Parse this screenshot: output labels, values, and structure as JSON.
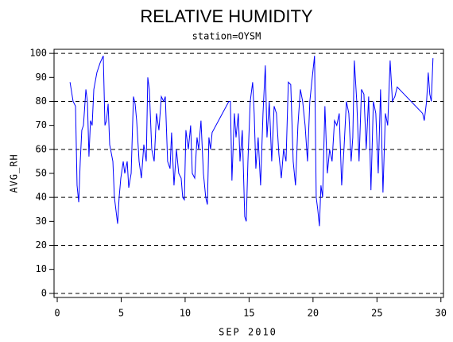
{
  "chart_data": {
    "type": "line",
    "title": "RELATIVE HUMIDITY",
    "subtitle": "station=OYSM",
    "x_label": "SEP 2010",
    "y_label": "AVG_RH",
    "color": "#0000ff",
    "xlim": [
      -0.25,
      30.2
    ],
    "xticks": [
      0,
      5,
      10,
      15,
      20,
      25,
      30
    ],
    "ylim": [
      -1.7,
      101.7
    ],
    "yticks": [
      0,
      10,
      20,
      30,
      40,
      50,
      60,
      70,
      80,
      90,
      100
    ],
    "ygrid": [
      0,
      20,
      40,
      60,
      80,
      100
    ],
    "x": [
      1.0,
      1.24,
      1.43,
      1.55,
      1.68,
      1.8,
      1.92,
      2.05,
      2.24,
      2.36,
      2.48,
      2.6,
      2.73,
      2.86,
      3.1,
      3.35,
      3.6,
      3.73,
      3.85,
      3.98,
      4.1,
      4.35,
      4.47,
      4.72,
      4.84,
      4.97,
      5.16,
      5.28,
      5.47,
      5.59,
      5.78,
      5.96,
      6.09,
      6.21,
      6.4,
      6.58,
      6.77,
      6.96,
      7.08,
      7.2,
      7.39,
      7.58,
      7.76,
      7.95,
      8.14,
      8.32,
      8.45,
      8.63,
      8.82,
      8.94,
      9.13,
      9.32,
      9.5,
      9.69,
      9.81,
      9.94,
      10.06,
      10.25,
      10.43,
      10.56,
      10.75,
      10.93,
      11.06,
      11.24,
      11.43,
      11.61,
      11.74,
      11.86,
      11.99,
      12.11,
      13.42,
      13.54,
      13.66,
      13.85,
      13.98,
      14.16,
      14.29,
      14.47,
      14.66,
      14.78,
      14.91,
      15.09,
      15.28,
      15.4,
      15.53,
      15.71,
      15.9,
      16.09,
      16.27,
      16.4,
      16.58,
      16.77,
      16.96,
      17.14,
      17.33,
      17.52,
      17.7,
      17.89,
      18.07,
      18.26,
      18.45,
      18.63,
      18.82,
      19.01,
      19.19,
      19.38,
      19.57,
      19.75,
      19.94,
      20.12,
      20.25,
      20.37,
      20.5,
      20.62,
      20.75,
      20.93,
      21.12,
      21.3,
      21.49,
      21.68,
      21.86,
      22.05,
      22.24,
      22.42,
      22.61,
      22.8,
      22.98,
      23.11,
      23.23,
      23.42,
      23.6,
      23.79,
      23.98,
      24.16,
      24.35,
      24.53,
      24.72,
      24.91,
      25.1,
      25.28,
      25.47,
      25.66,
      25.84,
      26.03,
      26.21,
      26.4,
      26.58,
      28.57,
      28.7,
      28.88,
      29.01,
      29.13,
      29.25,
      29.38
    ],
    "values": [
      88,
      80,
      78,
      45,
      38,
      55,
      68,
      70,
      85,
      80,
      57,
      72,
      70,
      85,
      92,
      96,
      99,
      70,
      72,
      79,
      62,
      55,
      40,
      29,
      40,
      48,
      55,
      50,
      55,
      44,
      50,
      82,
      79,
      72,
      55,
      48,
      62,
      55,
      90,
      85,
      60,
      55,
      75,
      68,
      82,
      80,
      82,
      55,
      52,
      67,
      45,
      60,
      50,
      48,
      40,
      39,
      68,
      60,
      70,
      50,
      48,
      65,
      60,
      72,
      50,
      40,
      37,
      65,
      60,
      67,
      80,
      80,
      47,
      75,
      65,
      75,
      55,
      68,
      32,
      30,
      55,
      80,
      88,
      75,
      52,
      65,
      45,
      75,
      95,
      65,
      80,
      55,
      78,
      75,
      58,
      48,
      60,
      55,
      88,
      87,
      55,
      45,
      70,
      85,
      80,
      70,
      55,
      80,
      90,
      99,
      40,
      35,
      28,
      45,
      40,
      78,
      50,
      60,
      55,
      72,
      70,
      75,
      45,
      60,
      80,
      75,
      55,
      65,
      97,
      80,
      55,
      85,
      83,
      60,
      82,
      43,
      80,
      75,
      50,
      85,
      42,
      75,
      70,
      97,
      80,
      82,
      86,
      75,
      72,
      80,
      92,
      83,
      80,
      98
    ]
  }
}
